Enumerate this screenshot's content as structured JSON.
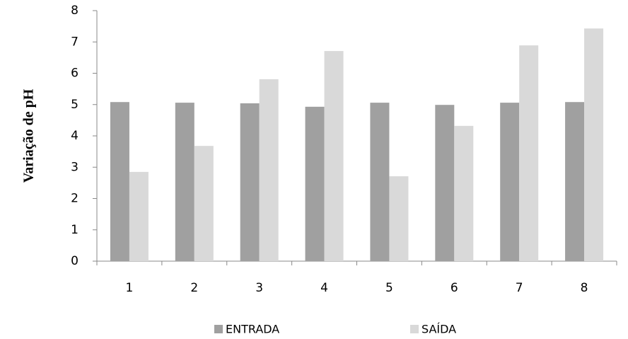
{
  "chart_data": {
    "type": "bar",
    "y_label": "Variação de pH",
    "categories": [
      "1",
      "2",
      "3",
      "4",
      "5",
      "6",
      "7",
      "8"
    ],
    "series": [
      {
        "name": "ENTRADA",
        "color": "#a0a0a0",
        "values": [
          5.08,
          5.06,
          5.04,
          4.93,
          5.06,
          4.99,
          5.06,
          5.08
        ]
      },
      {
        "name": "SAÍDA",
        "color": "#d9d9d9",
        "values": [
          2.85,
          3.68,
          5.81,
          6.71,
          2.71,
          4.32,
          6.89,
          7.43
        ]
      }
    ],
    "ylim": [
      0,
      8
    ],
    "yticks": [
      0,
      1,
      2,
      3,
      4,
      5,
      6,
      7,
      8
    ],
    "grid": false,
    "legend": "bottom"
  }
}
